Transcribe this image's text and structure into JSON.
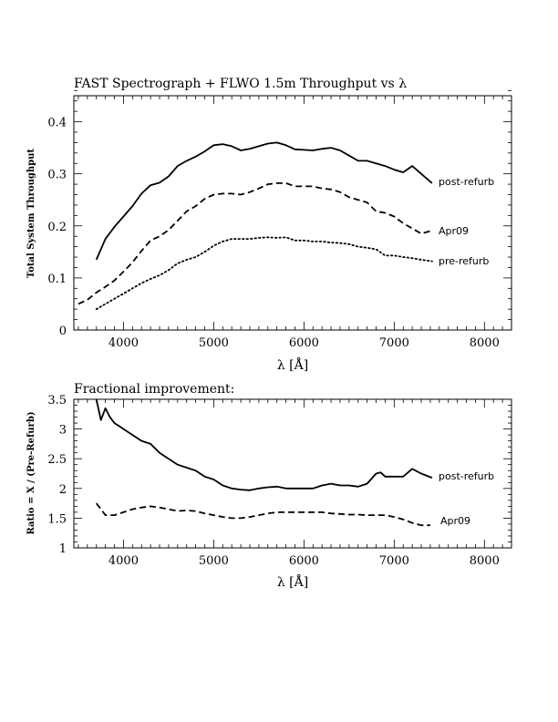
{
  "chart_data": [
    {
      "type": "line",
      "title": "FAST Spectrograph + FLWO 1.5m Throughput vs λ",
      "xlabel": "λ [Å]",
      "ylabel": "Total System Throughput",
      "xlim": [
        3450,
        8300
      ],
      "ylim": [
        0,
        0.45
      ],
      "xticks": [
        4000,
        5000,
        6000,
        7000,
        8000
      ],
      "yticks": [
        0,
        0.1,
        0.2,
        0.3,
        0.4
      ],
      "xtick_labels": [
        "4000",
        "5000",
        "6000",
        "7000",
        "8000"
      ],
      "ytick_labels": [
        "0",
        "0.1",
        "0.2",
        "0.3",
        "0.4"
      ],
      "grid": false,
      "series": [
        {
          "name": "post-refurb",
          "style": "solid",
          "x": [
            3700,
            3800,
            3900,
            4000,
            4100,
            4200,
            4300,
            4400,
            4500,
            4600,
            4700,
            4800,
            4900,
            5000,
            5100,
            5200,
            5300,
            5400,
            5500,
            5600,
            5700,
            5800,
            5900,
            6000,
            6100,
            6200,
            6300,
            6400,
            6500,
            6600,
            6700,
            6800,
            6900,
            7000,
            7100,
            7200,
            7300,
            7420
          ],
          "y": [
            0.135,
            0.175,
            0.198,
            0.218,
            0.238,
            0.262,
            0.278,
            0.283,
            0.295,
            0.315,
            0.325,
            0.333,
            0.343,
            0.355,
            0.357,
            0.353,
            0.345,
            0.348,
            0.353,
            0.358,
            0.36,
            0.355,
            0.347,
            0.346,
            0.345,
            0.348,
            0.35,
            0.345,
            0.335,
            0.325,
            0.325,
            0.32,
            0.315,
            0.308,
            0.303,
            0.315,
            0.3,
            0.282
          ]
        },
        {
          "name": "Apr09",
          "style": "dashed",
          "x": [
            3500,
            3600,
            3700,
            3800,
            3900,
            4000,
            4100,
            4200,
            4300,
            4400,
            4500,
            4600,
            4700,
            4800,
            4900,
            5000,
            5100,
            5200,
            5300,
            5400,
            5500,
            5600,
            5700,
            5800,
            5900,
            6000,
            6100,
            6200,
            6300,
            6400,
            6500,
            6600,
            6700,
            6800,
            6900,
            7000,
            7100,
            7200,
            7300,
            7400
          ],
          "y": [
            0.05,
            0.058,
            0.072,
            0.083,
            0.095,
            0.112,
            0.13,
            0.152,
            0.172,
            0.18,
            0.192,
            0.21,
            0.228,
            0.238,
            0.252,
            0.26,
            0.262,
            0.262,
            0.26,
            0.265,
            0.272,
            0.28,
            0.282,
            0.282,
            0.276,
            0.276,
            0.276,
            0.272,
            0.27,
            0.265,
            0.255,
            0.25,
            0.245,
            0.228,
            0.225,
            0.218,
            0.205,
            0.195,
            0.185,
            0.19
          ]
        },
        {
          "name": "pre-refurb",
          "style": "dotted",
          "x": [
            3700,
            3800,
            3900,
            4000,
            4100,
            4200,
            4300,
            4400,
            4500,
            4600,
            4700,
            4800,
            4900,
            5000,
            5100,
            5200,
            5300,
            5400,
            5500,
            5600,
            5700,
            5800,
            5900,
            6000,
            6100,
            6200,
            6300,
            6400,
            6500,
            6600,
            6700,
            6800,
            6900,
            7000,
            7100,
            7200,
            7300,
            7420
          ],
          "y": [
            0.04,
            0.05,
            0.06,
            0.07,
            0.08,
            0.09,
            0.098,
            0.105,
            0.115,
            0.128,
            0.135,
            0.14,
            0.15,
            0.162,
            0.17,
            0.175,
            0.175,
            0.175,
            0.177,
            0.178,
            0.177,
            0.178,
            0.172,
            0.172,
            0.17,
            0.17,
            0.168,
            0.167,
            0.165,
            0.16,
            0.158,
            0.155,
            0.143,
            0.143,
            0.14,
            0.138,
            0.135,
            0.132
          ]
        }
      ]
    },
    {
      "type": "line",
      "title": "Fractional improvement:",
      "xlabel": "λ [Å]",
      "ylabel": "Ratio = X / (Pre-Refurb)",
      "xlim": [
        3450,
        8300
      ],
      "ylim": [
        1,
        3.5
      ],
      "xticks": [
        4000,
        5000,
        6000,
        7000,
        8000
      ],
      "yticks": [
        1,
        1.5,
        2,
        2.5,
        3,
        3.5
      ],
      "xtick_labels": [
        "4000",
        "5000",
        "6000",
        "7000",
        "8000"
      ],
      "ytick_labels": [
        "1",
        "1.5",
        "2",
        "2.5",
        "3",
        "3.5"
      ],
      "grid": false,
      "series": [
        {
          "name": "post-refurb",
          "style": "solid",
          "x": [
            3700,
            3750,
            3800,
            3850,
            3900,
            3950,
            4000,
            4100,
            4200,
            4300,
            4400,
            4500,
            4600,
            4700,
            4800,
            4900,
            5000,
            5100,
            5200,
            5300,
            5400,
            5500,
            5600,
            5700,
            5800,
            5900,
            6000,
            6100,
            6200,
            6300,
            6400,
            6500,
            6600,
            6700,
            6800,
            6850,
            6900,
            7000,
            7100,
            7200,
            7300,
            7420
          ],
          "y": [
            3.5,
            3.15,
            3.35,
            3.2,
            3.1,
            3.05,
            3.0,
            2.9,
            2.8,
            2.75,
            2.6,
            2.5,
            2.4,
            2.35,
            2.3,
            2.2,
            2.15,
            2.05,
            2.0,
            1.98,
            1.97,
            2.0,
            2.02,
            2.03,
            2.0,
            2.0,
            2.0,
            2.0,
            2.05,
            2.08,
            2.05,
            2.05,
            2.03,
            2.08,
            2.25,
            2.27,
            2.2,
            2.2,
            2.2,
            2.33,
            2.25,
            2.18
          ]
        },
        {
          "name": "Apr09",
          "style": "dashed",
          "x": [
            3700,
            3800,
            3900,
            4000,
            4100,
            4200,
            4300,
            4400,
            4500,
            4600,
            4700,
            4800,
            4900,
            5000,
            5100,
            5200,
            5300,
            5400,
            5500,
            5600,
            5700,
            5800,
            5900,
            6000,
            6100,
            6200,
            6300,
            6400,
            6500,
            6600,
            6700,
            6800,
            6900,
            7000,
            7100,
            7200,
            7300,
            7400
          ],
          "y": [
            1.75,
            1.55,
            1.55,
            1.6,
            1.65,
            1.68,
            1.7,
            1.68,
            1.65,
            1.62,
            1.63,
            1.62,
            1.58,
            1.55,
            1.52,
            1.5,
            1.5,
            1.52,
            1.55,
            1.58,
            1.6,
            1.6,
            1.6,
            1.6,
            1.6,
            1.6,
            1.58,
            1.57,
            1.56,
            1.56,
            1.55,
            1.55,
            1.55,
            1.52,
            1.48,
            1.42,
            1.38,
            1.38
          ]
        }
      ]
    }
  ]
}
